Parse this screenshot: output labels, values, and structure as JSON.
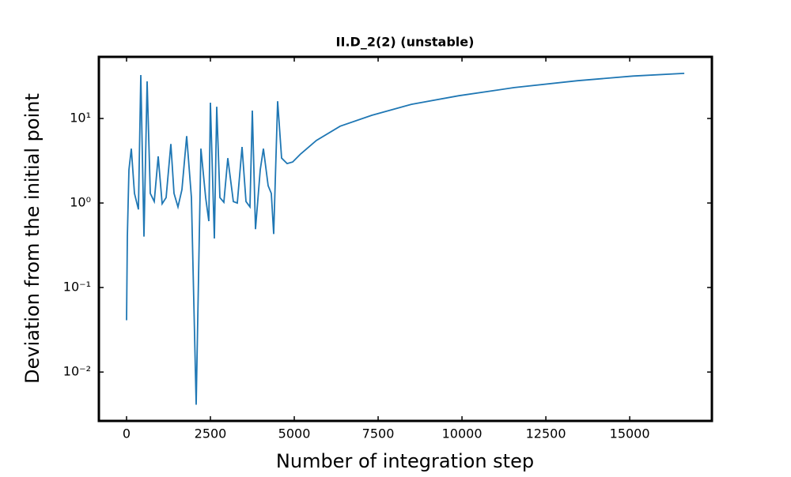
{
  "chart_data": {
    "type": "line",
    "title": "II.D_2(2) (unstable)",
    "x_label": "Number of integration step",
    "y_label": "Deviation from the initial point",
    "x": [
      0,
      24,
      71,
      141,
      236,
      354,
      425,
      519,
      613,
      708,
      825,
      943,
      1061,
      1179,
      1321,
      1415,
      1533,
      1651,
      1792,
      1934,
      2075,
      2217,
      2358,
      2453,
      2500,
      2618,
      2689,
      2783,
      2901,
      3019,
      3184,
      3302,
      3443,
      3561,
      3679,
      3750,
      3844,
      3986,
      4080,
      4222,
      4316,
      4387,
      4505,
      4623,
      4788,
      4953,
      5189,
      5660,
      6368,
      7311,
      8491,
      9906,
      11557,
      13443,
      15094,
      16627
    ],
    "series": [
      {
        "name": "Deviation",
        "color": "#1f77b4",
        "values": [
          0.041,
          0.4,
          2.47,
          4.4,
          1.3,
          0.84,
          32.7,
          0.4,
          27.5,
          1.3,
          1.04,
          3.56,
          0.98,
          1.16,
          5.0,
          1.3,
          0.9,
          1.44,
          6.2,
          1.16,
          0.0041,
          4.4,
          1.16,
          0.61,
          15.4,
          0.38,
          13.8,
          1.16,
          1.02,
          3.4,
          1.04,
          1.0,
          4.6,
          1.04,
          0.9,
          12.4,
          0.49,
          2.47,
          4.4,
          1.6,
          1.3,
          0.43,
          16.0,
          3.4,
          2.93,
          3.06,
          3.8,
          5.5,
          8.1,
          10.9,
          14.7,
          18.6,
          23.2,
          28.0,
          31.8,
          34.2
        ]
      }
    ],
    "xlim": [
      -825,
      17450
    ],
    "xticks": [
      0,
      2500,
      5000,
      7500,
      10000,
      12500,
      15000
    ],
    "ylim": [
      0.00264,
      53.6
    ],
    "y_scale": "log",
    "yticks": [
      {
        "value": 0.01,
        "label": "10⁻²"
      },
      {
        "value": 0.1,
        "label": "10⁻¹"
      },
      {
        "value": 1,
        "label": "10⁰"
      },
      {
        "value": 10,
        "label": "10¹"
      }
    ],
    "grid": false
  }
}
